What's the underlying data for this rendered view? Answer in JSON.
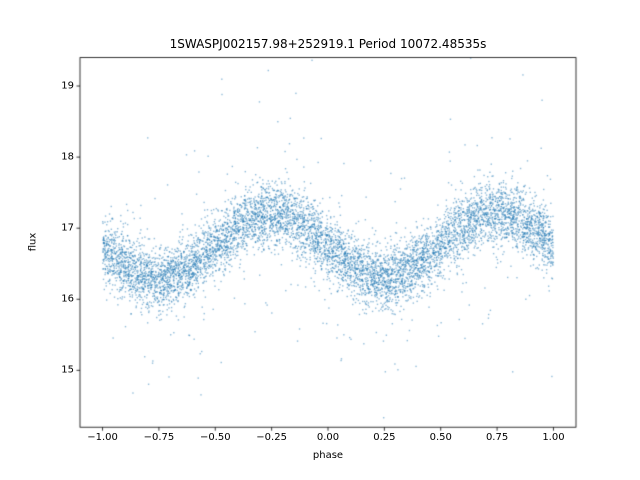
{
  "chart_data": {
    "type": "scatter",
    "title": "1SWASPJ002157.98+252919.1 Period 10072.48535s",
    "xlabel": "phase",
    "ylabel": "flux",
    "xlim": [
      -1.1,
      1.1
    ],
    "ylim": [
      14.2,
      19.4
    ],
    "x_ticks": [
      -1.0,
      -0.75,
      -0.5,
      -0.25,
      0.0,
      0.25,
      0.5,
      0.75,
      1.0
    ],
    "x_tick_labels": [
      "−1.00",
      "−0.75",
      "−0.50",
      "−0.25",
      "0.00",
      "0.25",
      "0.50",
      "0.75",
      "1.00"
    ],
    "y_ticks": [
      15,
      16,
      17,
      18,
      19
    ],
    "y_tick_labels": [
      "15",
      "16",
      "17",
      "18",
      "19"
    ],
    "grid": false,
    "legend": null,
    "marker_color": "#1f77b4",
    "marker_alpha": 0.5,
    "marker_size_px": 1.4,
    "n_points": 7500,
    "seed": 42,
    "model": {
      "description": "Phase-folded variable-star light curve: flux = mean_flux - amplitude*sin(2*pi*phase) + gaussian noise; peaks near phase -0.25 and +0.75 (~17.2 flux), troughs near -0.75 and +0.25 (~16.3 flux); sparse outliers span ~14.4 to ~19.2.",
      "mean_flux": 16.75,
      "amplitude": 0.45,
      "peak_phase": -0.25,
      "trough_phase": 0.25,
      "noise_sigma": 0.22,
      "outlier_fraction": 0.05,
      "outlier_sigma": 0.85,
      "x_range": [
        -1.0,
        1.0
      ]
    }
  }
}
